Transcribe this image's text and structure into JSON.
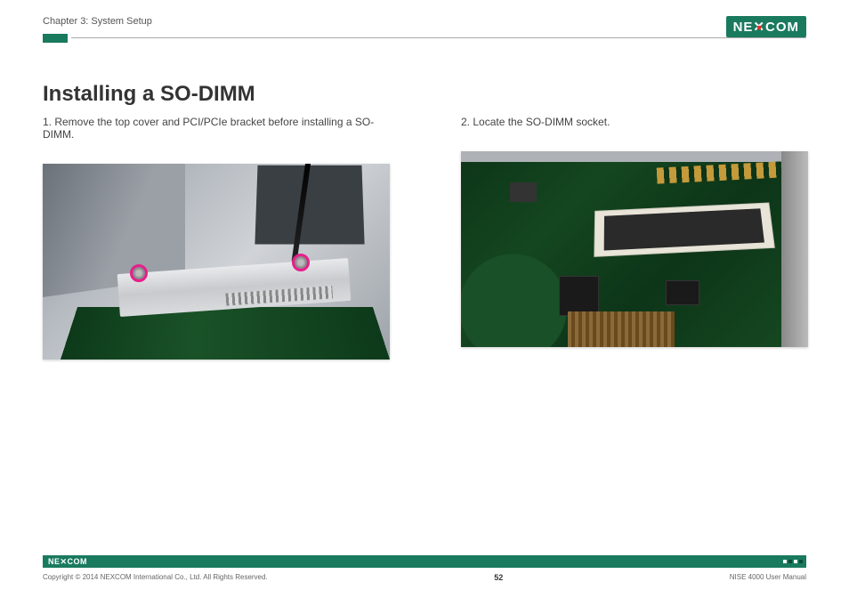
{
  "header": {
    "chapter": "Chapter 3: System Setup",
    "brand": "NE COM",
    "brand_x": "X"
  },
  "content": {
    "title": "Installing a SO-DIMM",
    "step1": "1. Remove the top cover and PCI/PCIe bracket before installing a SO-DIMM.",
    "step2": "2. Locate the SO-DIMM socket.",
    "marker_color": "#e91e8c",
    "pcb_color": "#0d3a1a",
    "bracket_color": "#d8dadc",
    "socket_color": "#e8e4d8"
  },
  "footer": {
    "brand_small": "NE✕COM",
    "copyright": "Copyright © 2014 NEXCOM International Co., Ltd. All Rights Reserved.",
    "page": "52",
    "doc": "NISE 4000 User Manual",
    "bar_color": "#1a7a5e"
  }
}
